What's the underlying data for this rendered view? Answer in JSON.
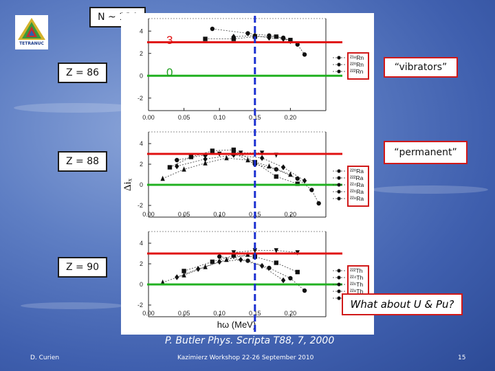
{
  "header": {
    "n_label": "N ~ 134",
    "logo_text": "TETRANUC"
  },
  "rows": [
    {
      "z_label": "Z = 86",
      "nuclei": [
        "²¹⁸Rn",
        "²²⁰Rn",
        "²²²Rn"
      ]
    },
    {
      "z_label": "Z = 88",
      "nuclei": [
        "²²⁰Ra",
        "²²²Ra",
        "²²⁴Ra",
        "²²⁶Ra",
        "²²⁸Ra"
      ]
    },
    {
      "z_label": "Z = 90",
      "nuclei": [
        "²²²Th",
        "²²⁴Th",
        "²²⁶Th",
        "²²⁸Th",
        "²³⁰Th"
      ]
    }
  ],
  "markers": {
    "line3": "3",
    "line0": "0"
  },
  "labels": {
    "vibrators": "“vibrators”",
    "permanent": "“permanent”",
    "question": "What about U & Pu?"
  },
  "citation": "P. Butler Phys. Scripta T88, 7, 2000",
  "footer": {
    "author": "D. Curien",
    "event": "Kazimierz Workshop 22-26 September 2010",
    "page": "15"
  },
  "colors": {
    "red_line": "#e01010",
    "green_line": "#20b020",
    "blue_dash": "#1a2fd0"
  },
  "chart_data": {
    "type": "scatter",
    "xlabel": "hω (MeV)",
    "ylabel": "Δiₓ",
    "xlim": [
      0,
      0.25
    ],
    "ylim": [
      -3,
      5
    ],
    "xticks": [
      "0.00",
      "0.05",
      "0.10",
      "0.15",
      "0.20"
    ],
    "yticks": [
      "4",
      "2",
      "0",
      "-2"
    ],
    "reference_lines": {
      "upper": 3,
      "lower": 0,
      "vertical_x": 0.15
    },
    "panels": [
      {
        "name": "Rn",
        "series": [
          {
            "name": "²¹⁸Rn",
            "marker": "circle",
            "x": [
              0.09,
              0.14,
              0.17,
              0.19,
              0.21,
              0.22
            ],
            "y": [
              4.2,
              3.8,
              3.6,
              3.4,
              2.8,
              1.9
            ]
          },
          {
            "name": "²²⁰Rn",
            "marker": "square",
            "x": [
              0.08,
              0.12,
              0.15,
              0.18,
              0.2
            ],
            "y": [
              3.3,
              3.3,
              3.5,
              3.5,
              3.2
            ]
          },
          {
            "name": "²²²Rn",
            "marker": "diamond",
            "x": [
              0.12,
              0.15,
              0.17,
              0.19,
              0.2
            ],
            "y": [
              3.5,
              3.6,
              3.4,
              3.3,
              3.1
            ]
          }
        ]
      },
      {
        "name": "Ra",
        "series": [
          {
            "name": "²²⁰Ra",
            "marker": "circle",
            "x": [
              0.04,
              0.08,
              0.12,
              0.15,
              0.18,
              0.21,
              0.23,
              0.24
            ],
            "y": [
              2.4,
              2.9,
              3.1,
              2.0,
              1.5,
              0.6,
              -0.5,
              -1.8
            ]
          },
          {
            "name": "²²²Ra",
            "marker": "square",
            "x": [
              0.03,
              0.06,
              0.09,
              0.12,
              0.15,
              0.18,
              0.21
            ],
            "y": [
              1.7,
              2.7,
              3.3,
              3.4,
              2.2,
              0.8,
              0.1
            ]
          },
          {
            "name": "²²⁴Ra",
            "marker": "triangle",
            "x": [
              0.02,
              0.05,
              0.08,
              0.11,
              0.14,
              0.17,
              0.2
            ],
            "y": [
              0.6,
              1.5,
              2.1,
              2.6,
              2.4,
              1.8,
              1.0
            ]
          },
          {
            "name": "²²⁶Ra",
            "marker": "diamond",
            "x": [
              0.04,
              0.08,
              0.12,
              0.16,
              0.19,
              0.22
            ],
            "y": [
              1.8,
              2.5,
              2.9,
              2.6,
              1.7,
              0.4
            ]
          },
          {
            "name": "²²⁸Ra",
            "marker": "invtriangle",
            "x": [
              0.1,
              0.13,
              0.16,
              0.18
            ],
            "y": [
              3.0,
              3.1,
              3.1,
              2.9
            ]
          }
        ]
      },
      {
        "name": "Th",
        "series": [
          {
            "name": "²²²Th",
            "marker": "circle",
            "x": [
              0.1,
              0.14,
              0.17,
              0.2,
              0.22
            ],
            "y": [
              2.7,
              2.3,
              1.6,
              0.6,
              -0.6
            ]
          },
          {
            "name": "²²⁴Th",
            "marker": "square",
            "x": [
              0.05,
              0.09,
              0.12,
              0.15,
              0.18,
              0.21
            ],
            "y": [
              1.3,
              2.2,
              2.8,
              2.7,
              2.1,
              1.2
            ]
          },
          {
            "name": "²²⁶Th",
            "marker": "diamond",
            "x": [
              0.04,
              0.07,
              0.1,
              0.13,
              0.16,
              0.19
            ],
            "y": [
              0.7,
              1.5,
              2.2,
              2.4,
              1.8,
              0.4
            ]
          },
          {
            "name": "²²⁸Th",
            "marker": "triangle",
            "x": [
              0.02,
              0.05,
              0.08,
              0.11,
              0.14
            ],
            "y": [
              0.2,
              0.9,
              1.7,
              2.4,
              2.9
            ]
          },
          {
            "name": "²³⁰Th",
            "marker": "invtriangle",
            "x": [
              0.12,
              0.15,
              0.18,
              0.21
            ],
            "y": [
              3.1,
              3.3,
              3.3,
              3.1
            ]
          }
        ]
      }
    ]
  }
}
